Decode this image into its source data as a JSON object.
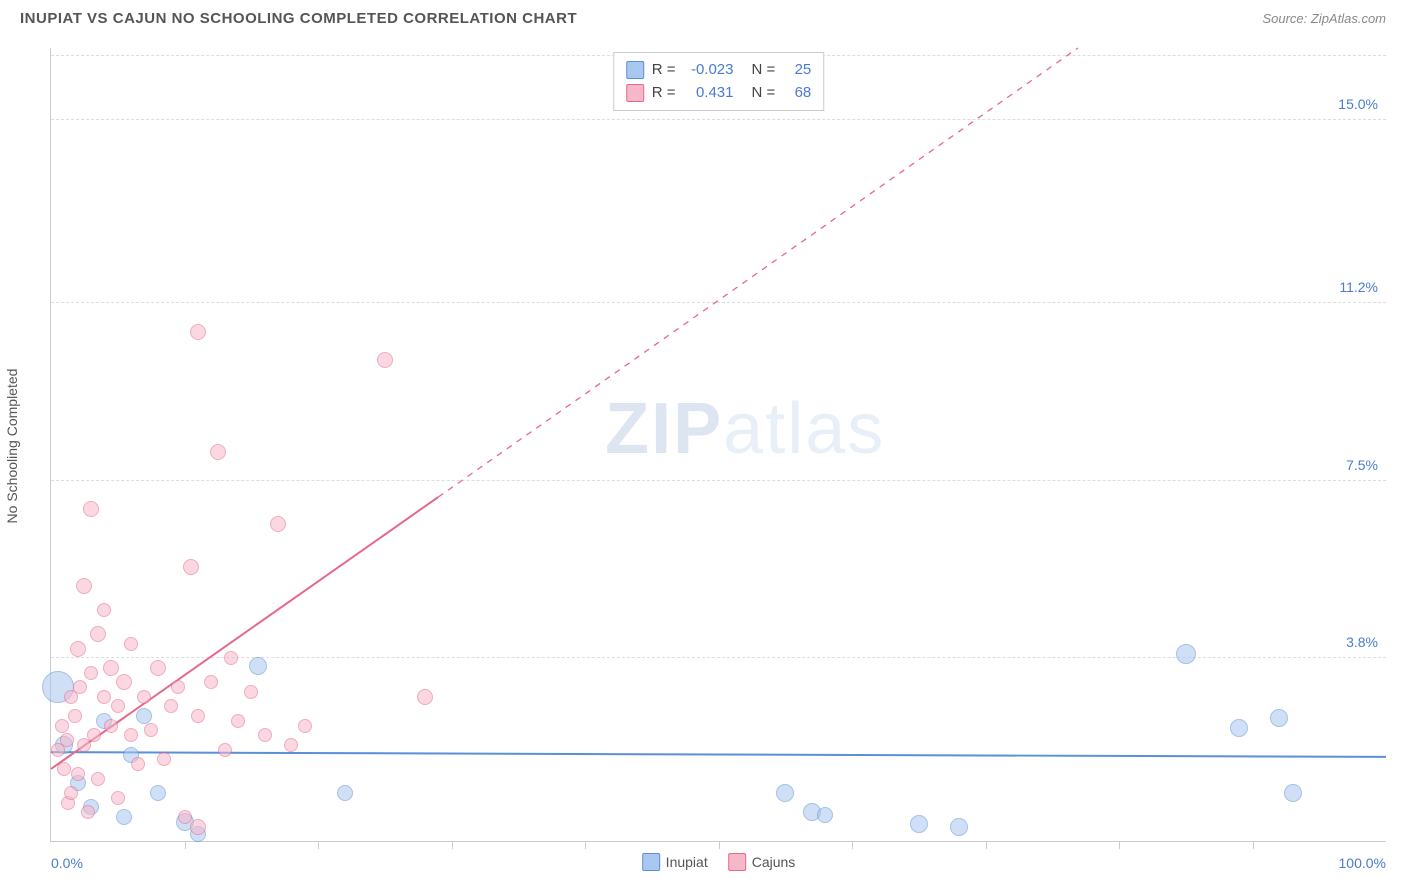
{
  "title": "INUPIAT VS CAJUN NO SCHOOLING COMPLETED CORRELATION CHART",
  "source": "Source: ZipAtlas.com",
  "watermark_bold": "ZIP",
  "watermark_light": "atlas",
  "ylabel": "No Schooling Completed",
  "chart": {
    "type": "scatter",
    "background_color": "#ffffff",
    "grid_color": "#dddddd",
    "axis_color": "#cccccc",
    "tick_label_color": "#4a7bd0",
    "xlim": [
      0,
      100
    ],
    "ylim": [
      0,
      16.5
    ],
    "xticks": [
      0,
      10,
      20,
      30,
      40,
      50,
      60,
      70,
      80,
      90,
      100
    ],
    "yticks": [
      {
        "v": 3.8,
        "label": "3.8%"
      },
      {
        "v": 7.5,
        "label": "7.5%"
      },
      {
        "v": 11.2,
        "label": "11.2%"
      },
      {
        "v": 15.0,
        "label": "15.0%"
      }
    ],
    "x_axis_labels": {
      "min": "0.0%",
      "max": "100.0%"
    },
    "point_opacity": 0.55,
    "point_radius_min": 6,
    "point_radius_max": 12,
    "series": [
      {
        "name": "Inupiat",
        "fill": "#a8c8ef",
        "stroke": "#5b8fd6",
        "R": "-0.023",
        "N": "25",
        "trend": {
          "y_at_x0": 1.85,
          "y_at_x100": 1.75,
          "style": "solid",
          "width": 2
        },
        "points": [
          {
            "x": 0.5,
            "y": 3.2,
            "r": 16
          },
          {
            "x": 1.0,
            "y": 2.0,
            "r": 9
          },
          {
            "x": 2.0,
            "y": 1.2,
            "r": 8
          },
          {
            "x": 3.0,
            "y": 0.7,
            "r": 8
          },
          {
            "x": 4.0,
            "y": 2.5,
            "r": 8
          },
          {
            "x": 5.5,
            "y": 0.5,
            "r": 8
          },
          {
            "x": 6.0,
            "y": 1.8,
            "r": 8
          },
          {
            "x": 7.0,
            "y": 2.6,
            "r": 8
          },
          {
            "x": 8.0,
            "y": 1.0,
            "r": 8
          },
          {
            "x": 10.0,
            "y": 0.4,
            "r": 9
          },
          {
            "x": 11.0,
            "y": 0.15,
            "r": 8
          },
          {
            "x": 15.5,
            "y": 3.65,
            "r": 9
          },
          {
            "x": 22.0,
            "y": 1.0,
            "r": 8
          },
          {
            "x": 55.0,
            "y": 1.0,
            "r": 9
          },
          {
            "x": 57.0,
            "y": 0.6,
            "r": 9
          },
          {
            "x": 58.0,
            "y": 0.55,
            "r": 8
          },
          {
            "x": 65.0,
            "y": 0.35,
            "r": 9
          },
          {
            "x": 68.0,
            "y": 0.3,
            "r": 9
          },
          {
            "x": 85.0,
            "y": 3.9,
            "r": 10
          },
          {
            "x": 89.0,
            "y": 2.35,
            "r": 9
          },
          {
            "x": 92.0,
            "y": 2.55,
            "r": 9
          },
          {
            "x": 93.0,
            "y": 1.0,
            "r": 9
          }
        ]
      },
      {
        "name": "Cajuns",
        "fill": "#f6b8c9",
        "stroke": "#e6688b",
        "R": "0.431",
        "N": "68",
        "trend": {
          "y_at_x0": 1.5,
          "y_at_x100": 21.0,
          "style": "solid_then_dash",
          "solid_until_x": 29,
          "width": 2
        },
        "points": [
          {
            "x": 0.5,
            "y": 1.9,
            "r": 7
          },
          {
            "x": 0.8,
            "y": 2.4,
            "r": 7
          },
          {
            "x": 1.0,
            "y": 1.5,
            "r": 7
          },
          {
            "x": 1.2,
            "y": 2.1,
            "r": 7
          },
          {
            "x": 1.3,
            "y": 0.8,
            "r": 7
          },
          {
            "x": 1.5,
            "y": 3.0,
            "r": 7
          },
          {
            "x": 1.5,
            "y": 1.0,
            "r": 7
          },
          {
            "x": 1.8,
            "y": 2.6,
            "r": 7
          },
          {
            "x": 2.0,
            "y": 4.0,
            "r": 8
          },
          {
            "x": 2.0,
            "y": 1.4,
            "r": 7
          },
          {
            "x": 2.2,
            "y": 3.2,
            "r": 7
          },
          {
            "x": 2.5,
            "y": 5.3,
            "r": 8
          },
          {
            "x": 2.5,
            "y": 2.0,
            "r": 7
          },
          {
            "x": 2.8,
            "y": 0.6,
            "r": 7
          },
          {
            "x": 3.0,
            "y": 3.5,
            "r": 7
          },
          {
            "x": 3.0,
            "y": 6.9,
            "r": 8
          },
          {
            "x": 3.2,
            "y": 2.2,
            "r": 7
          },
          {
            "x": 3.5,
            "y": 4.3,
            "r": 8
          },
          {
            "x": 3.5,
            "y": 1.3,
            "r": 7
          },
          {
            "x": 4.0,
            "y": 3.0,
            "r": 7
          },
          {
            "x": 4.0,
            "y": 4.8,
            "r": 7
          },
          {
            "x": 4.5,
            "y": 2.4,
            "r": 7
          },
          {
            "x": 4.5,
            "y": 3.6,
            "r": 8
          },
          {
            "x": 5.0,
            "y": 2.8,
            "r": 7
          },
          {
            "x": 5.0,
            "y": 0.9,
            "r": 7
          },
          {
            "x": 5.5,
            "y": 3.3,
            "r": 8
          },
          {
            "x": 6.0,
            "y": 2.2,
            "r": 7
          },
          {
            "x": 6.0,
            "y": 4.1,
            "r": 7
          },
          {
            "x": 6.5,
            "y": 1.6,
            "r": 7
          },
          {
            "x": 7.0,
            "y": 3.0,
            "r": 7
          },
          {
            "x": 7.5,
            "y": 2.3,
            "r": 7
          },
          {
            "x": 8.0,
            "y": 3.6,
            "r": 8
          },
          {
            "x": 8.5,
            "y": 1.7,
            "r": 7
          },
          {
            "x": 9.0,
            "y": 2.8,
            "r": 7
          },
          {
            "x": 9.5,
            "y": 3.2,
            "r": 7
          },
          {
            "x": 10.0,
            "y": 0.5,
            "r": 7
          },
          {
            "x": 10.5,
            "y": 5.7,
            "r": 8
          },
          {
            "x": 11.0,
            "y": 2.6,
            "r": 7
          },
          {
            "x": 11.0,
            "y": 10.6,
            "r": 8
          },
          {
            "x": 11.0,
            "y": 0.3,
            "r": 8
          },
          {
            "x": 12.0,
            "y": 3.3,
            "r": 7
          },
          {
            "x": 12.5,
            "y": 8.1,
            "r": 8
          },
          {
            "x": 13.0,
            "y": 1.9,
            "r": 7
          },
          {
            "x": 13.5,
            "y": 3.8,
            "r": 7
          },
          {
            "x": 14.0,
            "y": 2.5,
            "r": 7
          },
          {
            "x": 15.0,
            "y": 3.1,
            "r": 7
          },
          {
            "x": 16.0,
            "y": 2.2,
            "r": 7
          },
          {
            "x": 17.0,
            "y": 6.6,
            "r": 8
          },
          {
            "x": 18.0,
            "y": 2.0,
            "r": 7
          },
          {
            "x": 19.0,
            "y": 2.4,
            "r": 7
          },
          {
            "x": 25.0,
            "y": 10.0,
            "r": 8
          },
          {
            "x": 28.0,
            "y": 3.0,
            "r": 8
          }
        ]
      }
    ]
  },
  "legend_bottom": [
    {
      "label": "Inupiat",
      "fill": "#a8c8ef",
      "stroke": "#5b8fd6"
    },
    {
      "label": "Cajuns",
      "fill": "#f6b8c9",
      "stroke": "#e6688b"
    }
  ]
}
